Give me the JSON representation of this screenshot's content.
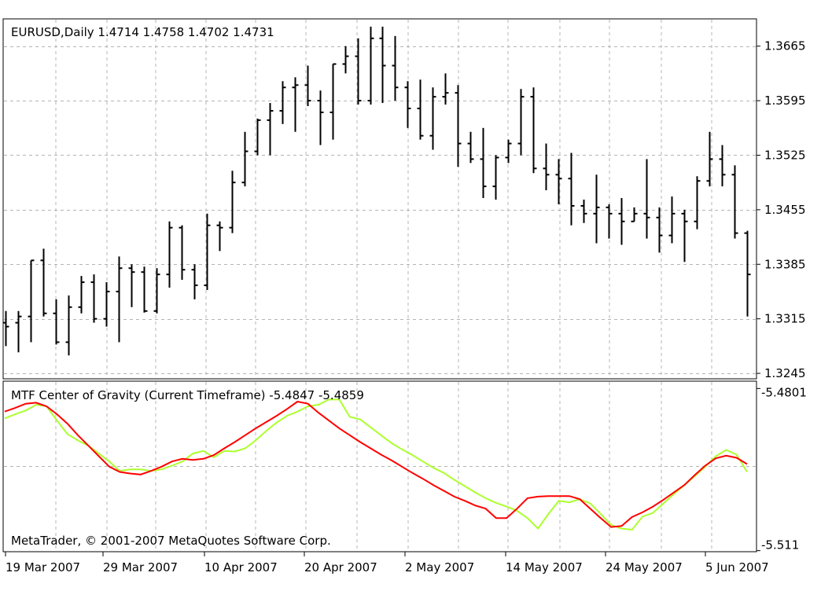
{
  "chart_data": [
    {
      "type": "ohlc",
      "title": "EURUSD,Daily  1.4714 1.4758 1.4702 1.4731",
      "y_ticks": [
        "1.3665",
        "1.3595",
        "1.3525",
        "1.3455",
        "1.3385",
        "1.3315",
        "1.3245"
      ],
      "y_tick_values": [
        1.3665,
        1.3595,
        1.3525,
        1.3455,
        1.3385,
        1.3315,
        1.3245
      ],
      "ylim": [
        1.3238,
        1.37
      ],
      "grid": true,
      "bars": [
        {
          "o": 1.331,
          "h": 1.3325,
          "l": 1.328,
          "c": 1.3305
        },
        {
          "o": 1.331,
          "h": 1.3325,
          "l": 1.3272,
          "c": 1.3318
        },
        {
          "o": 1.3318,
          "h": 1.339,
          "l": 1.3285,
          "c": 1.339
        },
        {
          "o": 1.339,
          "h": 1.3405,
          "l": 1.3318,
          "c": 1.3322
        },
        {
          "o": 1.3322,
          "h": 1.334,
          "l": 1.3282,
          "c": 1.3285
        },
        {
          "o": 1.3285,
          "h": 1.3345,
          "l": 1.3268,
          "c": 1.333
        },
        {
          "o": 1.333,
          "h": 1.337,
          "l": 1.3322,
          "c": 1.3362
        },
        {
          "o": 1.3362,
          "h": 1.3372,
          "l": 1.331,
          "c": 1.3315
        },
        {
          "o": 1.3315,
          "h": 1.3362,
          "l": 1.3305,
          "c": 1.335
        },
        {
          "o": 1.335,
          "h": 1.3395,
          "l": 1.3285,
          "c": 1.338
        },
        {
          "o": 1.338,
          "h": 1.3385,
          "l": 1.333,
          "c": 1.3375
        },
        {
          "o": 1.3375,
          "h": 1.3382,
          "l": 1.3323,
          "c": 1.3325
        },
        {
          "o": 1.3325,
          "h": 1.338,
          "l": 1.3322,
          "c": 1.3372
        },
        {
          "o": 1.3372,
          "h": 1.344,
          "l": 1.3355,
          "c": 1.3432
        },
        {
          "o": 1.3432,
          "h": 1.3435,
          "l": 1.3365,
          "c": 1.3378
        },
        {
          "o": 1.3378,
          "h": 1.3385,
          "l": 1.334,
          "c": 1.3358
        },
        {
          "o": 1.3358,
          "h": 1.345,
          "l": 1.3352,
          "c": 1.3435
        },
        {
          "o": 1.3435,
          "h": 1.344,
          "l": 1.3402,
          "c": 1.3432
        },
        {
          "o": 1.3432,
          "h": 1.3505,
          "l": 1.3425,
          "c": 1.349
        },
        {
          "o": 1.349,
          "h": 1.3555,
          "l": 1.3485,
          "c": 1.353
        },
        {
          "o": 1.353,
          "h": 1.3572,
          "l": 1.3525,
          "c": 1.357
        },
        {
          "o": 1.357,
          "h": 1.3592,
          "l": 1.3525,
          "c": 1.3582
        },
        {
          "o": 1.3582,
          "h": 1.362,
          "l": 1.3565,
          "c": 1.3612
        },
        {
          "o": 1.3612,
          "h": 1.3625,
          "l": 1.3555,
          "c": 1.3615
        },
        {
          "o": 1.3615,
          "h": 1.364,
          "l": 1.3588,
          "c": 1.3595
        },
        {
          "o": 1.3595,
          "h": 1.3608,
          "l": 1.3538,
          "c": 1.358
        },
        {
          "o": 1.358,
          "h": 1.3642,
          "l": 1.3545,
          "c": 1.3642
        },
        {
          "o": 1.3642,
          "h": 1.3665,
          "l": 1.363,
          "c": 1.3652
        },
        {
          "o": 1.3652,
          "h": 1.3675,
          "l": 1.359,
          "c": 1.3595
        },
        {
          "o": 1.3595,
          "h": 1.369,
          "l": 1.359,
          "c": 1.3675
        },
        {
          "o": 1.3675,
          "h": 1.369,
          "l": 1.3592,
          "c": 1.364
        },
        {
          "o": 1.364,
          "h": 1.3678,
          "l": 1.3595,
          "c": 1.3612
        },
        {
          "o": 1.3612,
          "h": 1.362,
          "l": 1.356,
          "c": 1.3585
        },
        {
          "o": 1.3585,
          "h": 1.3622,
          "l": 1.3545,
          "c": 1.355
        },
        {
          "o": 1.355,
          "h": 1.3612,
          "l": 1.3532,
          "c": 1.36
        },
        {
          "o": 1.36,
          "h": 1.363,
          "l": 1.359,
          "c": 1.3605
        },
        {
          "o": 1.3605,
          "h": 1.3615,
          "l": 1.351,
          "c": 1.354
        },
        {
          "o": 1.354,
          "h": 1.3555,
          "l": 1.3515,
          "c": 1.352
        },
        {
          "o": 1.352,
          "h": 1.356,
          "l": 1.347,
          "c": 1.3485
        },
        {
          "o": 1.3485,
          "h": 1.3525,
          "l": 1.3468,
          "c": 1.3522
        },
        {
          "o": 1.3522,
          "h": 1.3545,
          "l": 1.3515,
          "c": 1.354
        },
        {
          "o": 1.354,
          "h": 1.361,
          "l": 1.3525,
          "c": 1.36
        },
        {
          "o": 1.36,
          "h": 1.3612,
          "l": 1.3502,
          "c": 1.3508
        },
        {
          "o": 1.3508,
          "h": 1.354,
          "l": 1.348,
          "c": 1.35
        },
        {
          "o": 1.35,
          "h": 1.352,
          "l": 1.3462,
          "c": 1.3495
        },
        {
          "o": 1.3495,
          "h": 1.3528,
          "l": 1.3435,
          "c": 1.346
        },
        {
          "o": 1.346,
          "h": 1.3468,
          "l": 1.3438,
          "c": 1.345
        },
        {
          "o": 1.345,
          "h": 1.35,
          "l": 1.3412,
          "c": 1.3458
        },
        {
          "o": 1.3458,
          "h": 1.3462,
          "l": 1.3418,
          "c": 1.345
        },
        {
          "o": 1.345,
          "h": 1.347,
          "l": 1.341,
          "c": 1.344
        },
        {
          "o": 1.344,
          "h": 1.3458,
          "l": 1.344,
          "c": 1.345
        },
        {
          "o": 1.345,
          "h": 1.352,
          "l": 1.3418,
          "c": 1.3445
        },
        {
          "o": 1.3445,
          "h": 1.3458,
          "l": 1.34,
          "c": 1.3422
        },
        {
          "o": 1.3422,
          "h": 1.3472,
          "l": 1.3412,
          "c": 1.345
        },
        {
          "o": 1.345,
          "h": 1.3455,
          "l": 1.3388,
          "c": 1.344
        },
        {
          "o": 1.344,
          "h": 1.3498,
          "l": 1.343,
          "c": 1.3492
        },
        {
          "o": 1.3492,
          "h": 1.3555,
          "l": 1.3485,
          "c": 1.352
        },
        {
          "o": 1.352,
          "h": 1.3538,
          "l": 1.3485,
          "c": 1.35
        },
        {
          "o": 1.35,
          "h": 1.3512,
          "l": 1.3418,
          "c": 1.3425
        },
        {
          "o": 1.3425,
          "h": 1.3428,
          "l": 1.3318,
          "c": 1.3372
        }
      ]
    },
    {
      "type": "line",
      "title": "MTF Center of Gravity (Current Timeframe) -5.4847 -5.4859",
      "y_ticks": [
        "-5.4801",
        "-5.511"
      ],
      "y_tick_values": [
        -5.4801,
        -5.511
      ],
      "ylim": [
        -5.5112,
        -5.4787
      ],
      "grid": true,
      "series": [
        {
          "color": "#adff2f",
          "values": [
            -5.4858,
            -5.485,
            -5.4843,
            -5.4832,
            -5.4835,
            -5.4862,
            -5.4888,
            -5.49,
            -5.491,
            -5.4925,
            -5.494,
            -5.4958,
            -5.4955,
            -5.4955,
            -5.4958,
            -5.4955,
            -5.4948,
            -5.494,
            -5.4925,
            -5.492,
            -5.4932,
            -5.492,
            -5.4921,
            -5.4915,
            -5.49,
            -5.4882,
            -5.4866,
            -5.4853,
            -5.4845,
            -5.4835,
            -5.4832,
            -5.4822,
            -5.4822,
            -5.4855,
            -5.486,
            -5.4875,
            -5.489,
            -5.4905,
            -5.4917,
            -5.4928,
            -5.494,
            -5.4952,
            -5.4962,
            -5.4975,
            -5.4987,
            -5.4999,
            -5.501,
            -5.5019,
            -5.5026,
            -5.5034,
            -5.5048,
            -5.5068,
            -5.504,
            -5.5015,
            -5.5018,
            -5.5012,
            -5.502,
            -5.504,
            -5.5061,
            -5.5068,
            -5.507,
            -5.5045,
            -5.5038,
            -5.502,
            -5.5002,
            -5.4985,
            -5.4968,
            -5.495,
            -5.493,
            -5.4918,
            -5.4927,
            -5.496
          ]
        },
        {
          "color": "#ff0000",
          "values": [
            -5.4845,
            -5.4838,
            -5.483,
            -5.4828,
            -5.4835,
            -5.485,
            -5.4868,
            -5.489,
            -5.491,
            -5.493,
            -5.495,
            -5.496,
            -5.4963,
            -5.4965,
            -5.4958,
            -5.495,
            -5.494,
            -5.4935,
            -5.4937,
            -5.4935,
            -5.4928,
            -5.4915,
            -5.4903,
            -5.489,
            -5.4877,
            -5.4865,
            -5.4853,
            -5.484,
            -5.4826,
            -5.483,
            -5.4847,
            -5.4862,
            -5.4877,
            -5.489,
            -5.4903,
            -5.4915,
            -5.4927,
            -5.4938,
            -5.495,
            -5.4962,
            -5.4973,
            -5.4985,
            -5.4996,
            -5.5007,
            -5.5015,
            -5.5024,
            -5.503,
            -5.5048,
            -5.5048,
            -5.503,
            -5.501,
            -5.5007,
            -5.5006,
            -5.5006,
            -5.5006,
            -5.5012,
            -5.503,
            -5.5048,
            -5.5065,
            -5.5063,
            -5.5046,
            -5.5037,
            -5.5026,
            -5.5013,
            -5.4999,
            -5.4985,
            -5.4966,
            -5.4948,
            -5.4934,
            -5.4929,
            -5.4933,
            -5.4945
          ]
        }
      ]
    }
  ],
  "x_axis": {
    "labels": [
      "19 Mar 2007",
      "29 Mar 2007",
      "10 Apr 2007",
      "20 Apr 2007",
      "2 May 2007",
      "14 May 2007",
      "24 May 2007",
      "5 Jun 2007"
    ]
  },
  "footer": {
    "copyright": "MetaTrader, © 2001-2007 MetaQuotes Software Corp."
  },
  "colors": {
    "grid": "#b4b4b4",
    "bars": "#000000",
    "fast_line": "#adff2f",
    "slow_line": "#ff0000"
  }
}
